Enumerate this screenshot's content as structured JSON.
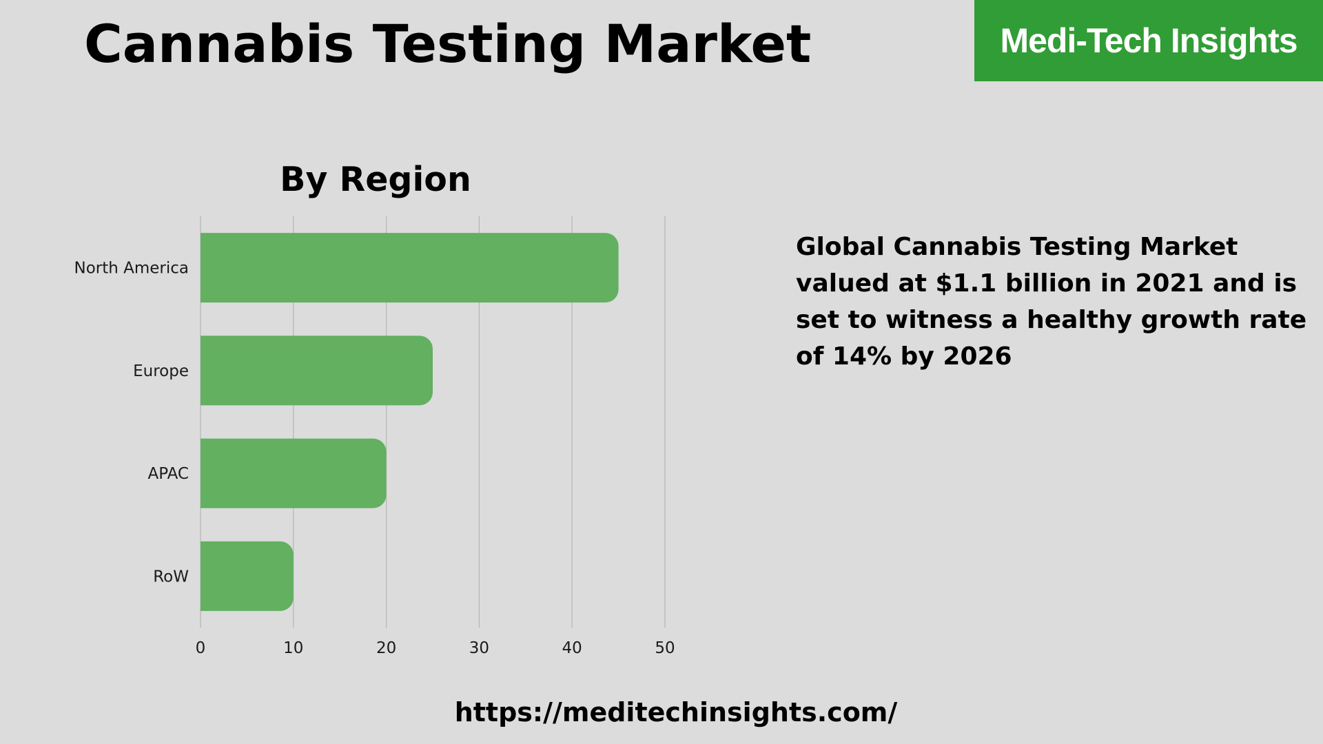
{
  "header": {
    "title": "Cannabis Testing Market",
    "brand": "Medi-Tech Insights"
  },
  "summary": {
    "text": "Global Cannabis Testing Market valued at $1.1 billion in 2021 and is set to witness a healthy growth rate of 14% by 2026"
  },
  "footer": {
    "url": "https://meditechinsights.com/"
  },
  "colors": {
    "background": "#dcdcdc",
    "bar": "#62b060",
    "brand_bg": "#319d36",
    "gridline": "#b5b5b5"
  },
  "chart_data": {
    "type": "bar",
    "orientation": "horizontal",
    "title": "By Region",
    "categories": [
      "North America",
      "Europe",
      "APAC",
      "RoW"
    ],
    "values": [
      45,
      25,
      20,
      10
    ],
    "xlim": [
      0,
      50
    ],
    "xticks": [
      0,
      10,
      20,
      30,
      40,
      50
    ],
    "xlabel": "",
    "ylabel": "",
    "grid": "vertical",
    "legend": "none"
  }
}
